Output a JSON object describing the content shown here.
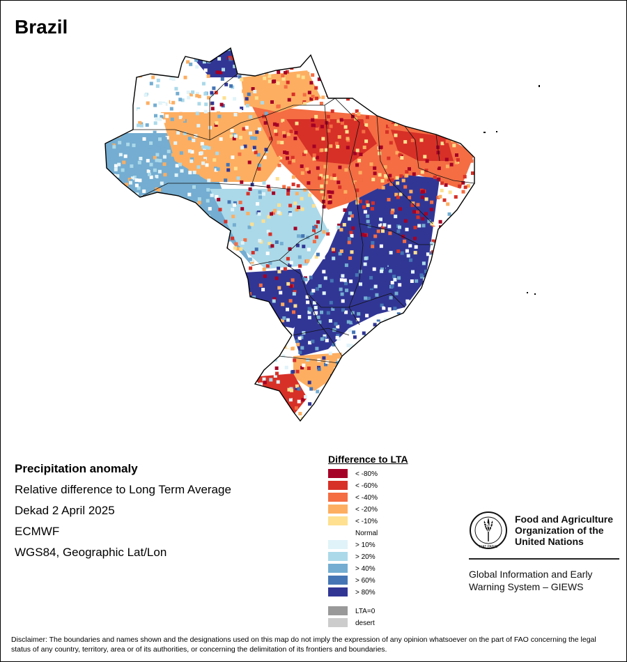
{
  "title": "Brazil",
  "info": {
    "heading": "Precipitation anomaly",
    "subtitle": "Relative difference to Long Term Average",
    "period": "Dekad 2 April 2025",
    "source": "ECMWF",
    "projection": "WGS84, Geographic Lat/Lon"
  },
  "legend": {
    "title": "Difference to LTA",
    "items": [
      {
        "label": "< -80%",
        "color": "#a50026"
      },
      {
        "label": "< -60%",
        "color": "#d73027"
      },
      {
        "label": "< -40%",
        "color": "#f46d43"
      },
      {
        "label": "< -20%",
        "color": "#fdae61"
      },
      {
        "label": "< -10%",
        "color": "#fee090"
      },
      {
        "label": "Normal",
        "color": "#ffffff"
      },
      {
        "label": "> 10%",
        "color": "#e0f3f8"
      },
      {
        "label": "> 20%",
        "color": "#abd9e9"
      },
      {
        "label": "> 40%",
        "color": "#74add1"
      },
      {
        "label": "> 60%",
        "color": "#4575b4"
      },
      {
        "label": "> 80%",
        "color": "#313695"
      },
      {
        "label": "LTA=0",
        "color": "#999999"
      },
      {
        "label": "desert",
        "color": "#cccccc"
      }
    ]
  },
  "organization": {
    "name_line1": "Food and Agriculture",
    "name_line2": "Organization of the",
    "name_line3": "United Nations",
    "emblem_text": "FAO",
    "emblem_motto": "FIAT PANIS",
    "system_line1": "Global Information and Early",
    "system_line2": "Warning System – GIEWS"
  },
  "disclaimer": "Disclaimer: The boundaries and names shown and the designations used on this map do not imply the expression of any opinion whatsoever on the part of FAO concerning the legal status of any country, territory, area or of its authorities, or concerning the delimitation of its frontiers and boundaries."
}
